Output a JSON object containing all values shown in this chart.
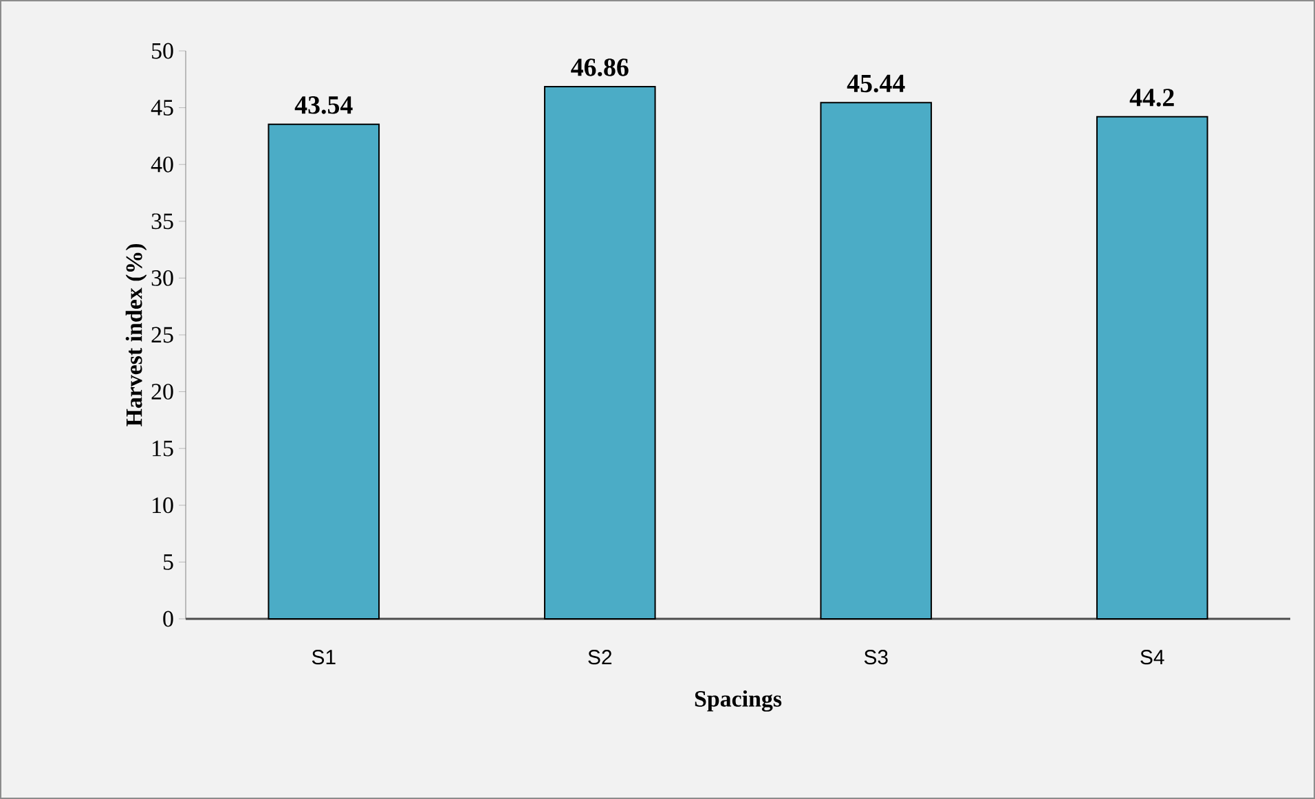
{
  "chart_data": {
    "type": "bar",
    "xlabel": "Spacings",
    "ylabel": "Harvest index (%)",
    "categories": [
      "S1",
      "S2",
      "S3",
      "S4"
    ],
    "values": [
      43.54,
      46.86,
      45.44,
      44.2
    ],
    "color": "#4bacc6",
    "ylim": [
      0,
      50
    ],
    "yticks": [
      0,
      5,
      10,
      15,
      20,
      25,
      30,
      35,
      40,
      45,
      50
    ],
    "data_labels": true,
    "grid": false
  }
}
